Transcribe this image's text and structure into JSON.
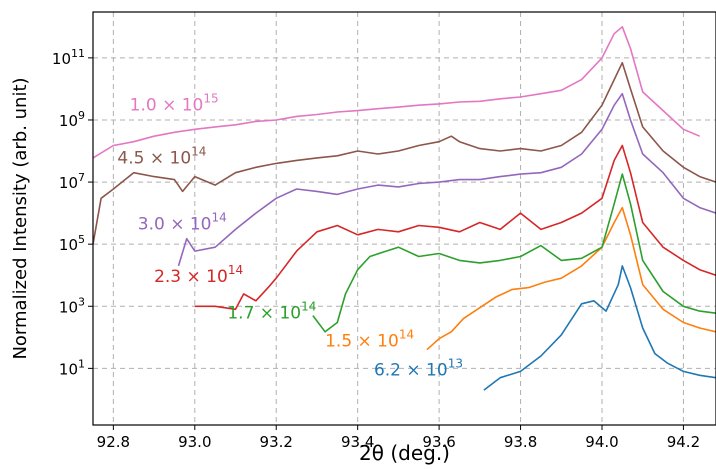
{
  "chart_data": {
    "type": "line",
    "title": "",
    "xlabel": "2θ (deg.)",
    "ylabel": "Normalized Intensity (arb. unit)",
    "xlim": [
      92.75,
      94.28
    ],
    "ylim": [
      0.15,
      3000000000000.0
    ],
    "yscale": "log",
    "grid": true,
    "x_ticks": [
      92.8,
      93.0,
      93.2,
      93.4,
      93.6,
      93.8,
      94.0,
      94.2
    ],
    "x_tick_labels": [
      "92.8",
      "93.0",
      "93.2",
      "93.4",
      "93.6",
      "93.8",
      "94.0",
      "94.2"
    ],
    "y_ticks": [
      10,
      1000,
      100000,
      10000000,
      1000000000,
      100000000000
    ],
    "y_tick_labels": [
      {
        "base": "10",
        "exp": "1"
      },
      {
        "base": "10",
        "exp": "3"
      },
      {
        "base": "10",
        "exp": "5"
      },
      {
        "base": "10",
        "exp": "7"
      },
      {
        "base": "10",
        "exp": "9"
      },
      {
        "base": "10",
        "exp": "11"
      }
    ],
    "series": [
      {
        "label": {
          "mantissa": "6.2",
          "exp": "13"
        },
        "color": "#1f77b4",
        "label_at": [
          93.44,
          6
        ],
        "points": [
          [
            93.71,
            2.0
          ],
          [
            93.75,
            5
          ],
          [
            93.8,
            8
          ],
          [
            93.85,
            25
          ],
          [
            93.9,
            120
          ],
          [
            93.95,
            1200
          ],
          [
            93.98,
            1500
          ],
          [
            94.01,
            700
          ],
          [
            94.04,
            5000
          ],
          [
            94.05,
            20000
          ],
          [
            94.07,
            4000
          ],
          [
            94.1,
            200
          ],
          [
            94.13,
            30
          ],
          [
            94.16,
            15
          ],
          [
            94.2,
            8
          ],
          [
            94.24,
            6
          ],
          [
            94.28,
            5
          ]
        ]
      },
      {
        "label": {
          "mantissa": "1.5",
          "exp": "14"
        },
        "color": "#ff7f0e",
        "label_at": [
          93.32,
          50
        ],
        "points": [
          [
            93.57,
            40
          ],
          [
            93.6,
            90
          ],
          [
            93.63,
            150
          ],
          [
            93.66,
            400
          ],
          [
            93.7,
            900
          ],
          [
            93.74,
            2000
          ],
          [
            93.78,
            3500
          ],
          [
            93.82,
            4000
          ],
          [
            93.86,
            6000
          ],
          [
            93.9,
            8000
          ],
          [
            93.95,
            20000
          ],
          [
            94.0,
            80000
          ],
          [
            94.03,
            500000
          ],
          [
            94.05,
            1500000
          ],
          [
            94.07,
            200000
          ],
          [
            94.1,
            5000
          ],
          [
            94.15,
            800
          ],
          [
            94.2,
            300
          ],
          [
            94.24,
            200
          ],
          [
            94.28,
            150
          ]
        ]
      },
      {
        "label": {
          "mantissa": "1.7",
          "exp": "14"
        },
        "color": "#2ca02c",
        "label_at": [
          93.08,
          400
        ],
        "points": [
          [
            93.29,
            500
          ],
          [
            93.32,
            150
          ],
          [
            93.35,
            300
          ],
          [
            93.37,
            2500
          ],
          [
            93.4,
            15000
          ],
          [
            93.43,
            40000
          ],
          [
            93.47,
            60000
          ],
          [
            93.5,
            80000
          ],
          [
            93.55,
            40000
          ],
          [
            93.6,
            50000
          ],
          [
            93.65,
            30000
          ],
          [
            93.7,
            25000
          ],
          [
            93.75,
            30000
          ],
          [
            93.8,
            40000
          ],
          [
            93.85,
            90000
          ],
          [
            93.9,
            30000
          ],
          [
            93.95,
            35000
          ],
          [
            94.0,
            80000
          ],
          [
            94.03,
            2000000
          ],
          [
            94.05,
            18000000
          ],
          [
            94.07,
            2000000
          ],
          [
            94.1,
            30000
          ],
          [
            94.15,
            3000
          ],
          [
            94.2,
            1000
          ],
          [
            94.24,
            700
          ],
          [
            94.28,
            600
          ]
        ]
      },
      {
        "label": {
          "mantissa": "2.3",
          "exp": "14"
        },
        "color": "#d62728",
        "label_at": [
          92.9,
          6000
        ],
        "points": [
          [
            93.0,
            1000
          ],
          [
            93.05,
            1000
          ],
          [
            93.1,
            800
          ],
          [
            93.12,
            2500
          ],
          [
            93.15,
            1500
          ],
          [
            93.18,
            4000
          ],
          [
            93.2,
            8000
          ],
          [
            93.25,
            60000
          ],
          [
            93.3,
            250000
          ],
          [
            93.35,
            400000
          ],
          [
            93.4,
            200000
          ],
          [
            93.45,
            300000
          ],
          [
            93.5,
            250000
          ],
          [
            93.55,
            400000
          ],
          [
            93.6,
            350000
          ],
          [
            93.65,
            250000
          ],
          [
            93.7,
            500000
          ],
          [
            93.75,
            300000
          ],
          [
            93.8,
            1000000
          ],
          [
            93.85,
            300000
          ],
          [
            93.9,
            500000
          ],
          [
            93.95,
            1000000
          ],
          [
            94.0,
            3000000
          ],
          [
            94.03,
            50000000
          ],
          [
            94.05,
            150000000
          ],
          [
            94.07,
            20000000
          ],
          [
            94.1,
            500000
          ],
          [
            94.15,
            80000
          ],
          [
            94.2,
            30000
          ],
          [
            94.24,
            15000
          ],
          [
            94.28,
            10000
          ]
        ]
      },
      {
        "label": {
          "mantissa": "3.0",
          "exp": "14"
        },
        "color": "#9467bd",
        "label_at": [
          92.86,
          300000
        ],
        "points": [
          [
            92.96,
            20000
          ],
          [
            92.98,
            150000
          ],
          [
            93.0,
            60000
          ],
          [
            93.05,
            80000
          ],
          [
            93.1,
            300000
          ],
          [
            93.15,
            1000000
          ],
          [
            93.2,
            3000000
          ],
          [
            93.25,
            6000000
          ],
          [
            93.3,
            5000000
          ],
          [
            93.35,
            4000000
          ],
          [
            93.4,
            6000000
          ],
          [
            93.45,
            8000000
          ],
          [
            93.5,
            7000000
          ],
          [
            93.55,
            9000000
          ],
          [
            93.6,
            10000000
          ],
          [
            93.65,
            12000000
          ],
          [
            93.7,
            12000000
          ],
          [
            93.75,
            15000000
          ],
          [
            93.8,
            18000000
          ],
          [
            93.85,
            20000000
          ],
          [
            93.9,
            30000000
          ],
          [
            93.95,
            80000000
          ],
          [
            94.0,
            500000000
          ],
          [
            94.03,
            3000000000
          ],
          [
            94.05,
            7000000000
          ],
          [
            94.07,
            1000000000
          ],
          [
            94.1,
            80000000
          ],
          [
            94.15,
            20000000
          ],
          [
            94.2,
            3000000
          ],
          [
            94.24,
            1500000
          ],
          [
            94.28,
            1000000
          ]
        ]
      },
      {
        "label": {
          "mantissa": "4.5",
          "exp": "14"
        },
        "color": "#8c564b",
        "label_at": [
          92.81,
          40000000
        ],
        "points": [
          [
            92.75,
            100000
          ],
          [
            92.77,
            3000000
          ],
          [
            92.8,
            6000000
          ],
          [
            92.85,
            20000000
          ],
          [
            92.9,
            15000000
          ],
          [
            92.95,
            12000000
          ],
          [
            92.97,
            5000000
          ],
          [
            93.0,
            15000000
          ],
          [
            93.05,
            8000000
          ],
          [
            93.1,
            20000000
          ],
          [
            93.15,
            30000000
          ],
          [
            93.2,
            40000000
          ],
          [
            93.25,
            50000000
          ],
          [
            93.3,
            60000000
          ],
          [
            93.35,
            70000000
          ],
          [
            93.4,
            100000000
          ],
          [
            93.45,
            80000000
          ],
          [
            93.5,
            100000000
          ],
          [
            93.55,
            150000000
          ],
          [
            93.6,
            200000000
          ],
          [
            93.63,
            300000000
          ],
          [
            93.65,
            200000000
          ],
          [
            93.7,
            120000000
          ],
          [
            93.75,
            100000000
          ],
          [
            93.8,
            120000000
          ],
          [
            93.85,
            100000000
          ],
          [
            93.9,
            150000000
          ],
          [
            93.95,
            400000000
          ],
          [
            94.0,
            3000000000
          ],
          [
            94.03,
            20000000000
          ],
          [
            94.05,
            70000000000
          ],
          [
            94.07,
            10000000000
          ],
          [
            94.1,
            600000000
          ],
          [
            94.15,
            100000000
          ],
          [
            94.2,
            30000000
          ],
          [
            94.24,
            15000000
          ],
          [
            94.28,
            10000000
          ]
        ]
      },
      {
        "label": {
          "mantissa": "1.0",
          "exp": "15"
        },
        "color": "#e377c2",
        "label_at": [
          92.84,
          2000000000
        ],
        "points": [
          [
            92.75,
            60000000
          ],
          [
            92.8,
            150000000
          ],
          [
            92.85,
            200000000
          ],
          [
            92.9,
            300000000
          ],
          [
            92.95,
            400000000
          ],
          [
            93.0,
            500000000
          ],
          [
            93.05,
            600000000
          ],
          [
            93.1,
            700000000
          ],
          [
            93.15,
            900000000
          ],
          [
            93.2,
            1000000000
          ],
          [
            93.25,
            1300000000
          ],
          [
            93.3,
            1500000000
          ],
          [
            93.35,
            1800000000
          ],
          [
            93.4,
            2000000000
          ],
          [
            93.45,
            2300000000
          ],
          [
            93.5,
            2600000000
          ],
          [
            93.55,
            3000000000
          ],
          [
            93.6,
            3300000000
          ],
          [
            93.65,
            3800000000
          ],
          [
            93.7,
            4000000000
          ],
          [
            93.75,
            4800000000
          ],
          [
            93.8,
            5500000000
          ],
          [
            93.85,
            7000000000
          ],
          [
            93.9,
            9000000000
          ],
          [
            93.95,
            20000000000
          ],
          [
            94.0,
            100000000000
          ],
          [
            94.03,
            600000000000
          ],
          [
            94.05,
            1000000000000
          ],
          [
            94.07,
            200000000000
          ],
          [
            94.1,
            8000000000
          ],
          [
            94.15,
            2000000000
          ],
          [
            94.2,
            500000000
          ],
          [
            94.24,
            300000000
          ]
        ]
      }
    ]
  }
}
